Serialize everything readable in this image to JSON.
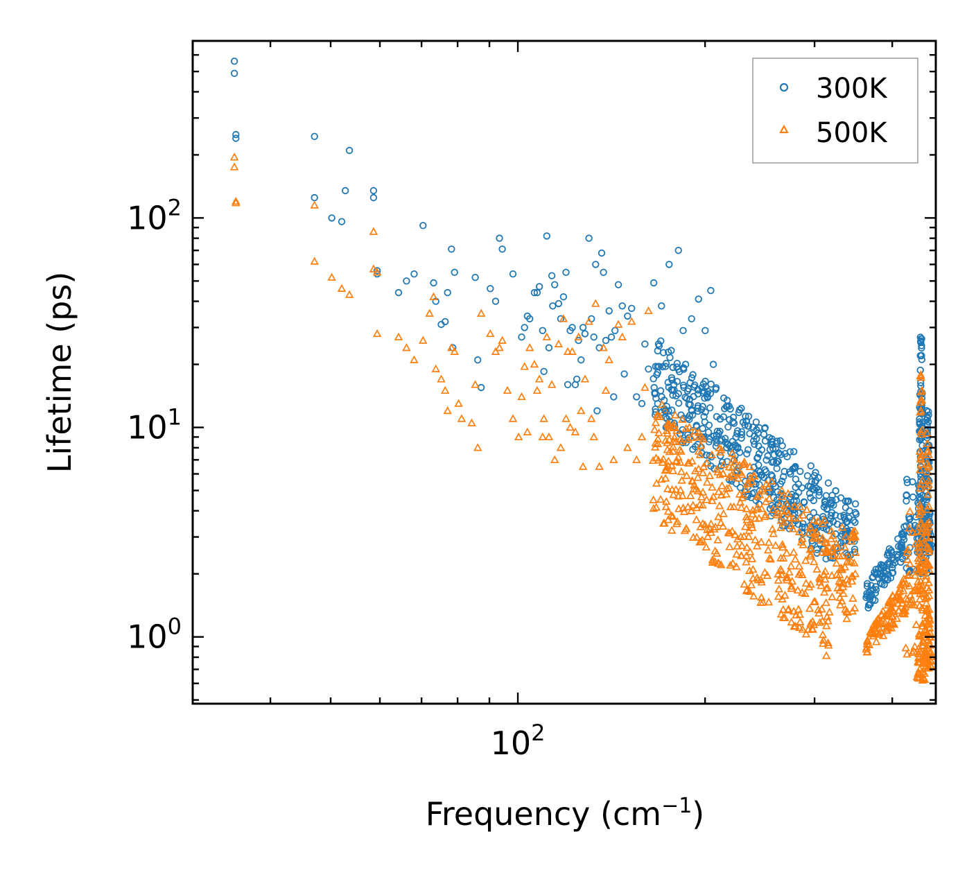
{
  "chart_data": {
    "type": "scatter",
    "xlabel": "Frequency (cm",
    "xlabel_sup": "−1",
    "xlabel_end": ")",
    "ylabel": "Lifetime (ps)",
    "xscale": "log",
    "yscale": "log",
    "xlim": [
      30,
      470
    ],
    "ylim": [
      0.48,
      700
    ],
    "x_tick_labels": [
      {
        "value": 100,
        "base": "10",
        "exp": "2"
      }
    ],
    "y_tick_labels": [
      {
        "value": 1,
        "base": "10",
        "exp": "0"
      },
      {
        "value": 10,
        "base": "10",
        "exp": "1"
      },
      {
        "value": 100,
        "base": "10",
        "exp": "2"
      }
    ],
    "legend_position": "top-right",
    "series": [
      {
        "name": "300K",
        "color": "#1f77b4",
        "marker": "circle",
        "x": [
          35.0,
          35.0,
          35.2,
          35.2,
          47.1,
          47.1,
          53.6,
          50.2,
          52.1,
          52.8,
          58.6,
          58.6,
          59.4,
          59.4,
          64.3,
          66.2,
          68.1,
          70.4,
          73.2,
          73.8,
          75.3,
          76.4,
          77.1,
          78.2,
          78.6,
          79.1,
          85.4,
          86.2,
          87.3,
          90.3,
          92.1,
          93.4,
          94.4,
          98.2,
          101.4,
          102.5,
          103.6,
          104.5,
          106.3,
          107.4,
          108.3,
          109.6,
          110.1,
          111.3,
          112.2,
          113.4,
          113.8,
          114.6,
          116.3,
          117.2,
          118.4,
          119.5,
          120.3,
          121.4,
          122.3,
          123.7,
          124.4,
          125.2,
          126.4,
          127.3,
          128.2,
          130.1,
          131.3,
          132.5,
          133.4,
          134.1,
          135.2,
          136.4,
          137.3,
          138.5,
          140.2,
          141.4,
          142.6,
          143.3,
          145.1,
          147.2,
          148.3,
          150.1,
          152.4,
          155.2,
          158.3,
          160.1,
          162.2,
          165.4,
          168.3,
          170.2,
          172.5,
          175.1,
          178.3,
          181.2,
          184.4,
          186.1,
          190.3,
          195.2,
          200.1,
          204.3,
          206.2
        ],
        "y": [
          560,
          490,
          250,
          240,
          245,
          125,
          210,
          100,
          96,
          135,
          135,
          125,
          56,
          54,
          44,
          50,
          54,
          92,
          49,
          40,
          31,
          32,
          44,
          71,
          24,
          55,
          52,
          21,
          15.5,
          46,
          40,
          80,
          71,
          54,
          27,
          30,
          34,
          33,
          44,
          44,
          47,
          29,
          18.5,
          82,
          24,
          53,
          38,
          48,
          39,
          33,
          42,
          55,
          16,
          29,
          30,
          16,
          17,
          26,
          21,
          30,
          28,
          80,
          33,
          27,
          60,
          12,
          24,
          68,
          55,
          26,
          36,
          27,
          14,
          29,
          48,
          38,
          18,
          34,
          37,
          14,
          13,
          25,
          19,
          49,
          25,
          38,
          12,
          60,
          16,
          70,
          29,
          20,
          33,
          41,
          29,
          45,
          20
        ]
      },
      {
        "name": "500K",
        "color": "#ff7f0e",
        "marker": "triangle",
        "x": [
          35.0,
          35.0,
          35.2,
          35.2,
          47.1,
          47.1,
          50.2,
          52.1,
          53.6,
          58.6,
          58.6,
          59.4,
          59.4,
          64.3,
          66.2,
          68.1,
          70.4,
          72.1,
          73.2,
          73.8,
          75.3,
          76.4,
          77.1,
          78.2,
          79.1,
          80.3,
          81.2,
          84.3,
          85.4,
          86.2,
          87.3,
          90.3,
          92.1,
          93.4,
          94.4,
          96.2,
          98.2,
          100.3,
          101.4,
          102.5,
          103.6,
          104.5,
          106.3,
          107.4,
          108.3,
          109.6,
          110.1,
          111.3,
          112.2,
          113.4,
          114.6,
          116.3,
          117.2,
          118.4,
          119.5,
          120.3,
          121.4,
          122.3,
          123.7,
          125.2,
          126.4,
          127.3,
          128.2,
          130.1,
          131.3,
          132.5,
          133.4,
          135.2,
          137.3,
          138.5,
          140.2,
          142.6,
          145.1,
          147.2,
          150.1,
          152.4,
          155.2,
          158.3,
          160.1,
          162.2
        ],
        "y": [
          195,
          175,
          120,
          118,
          62,
          115,
          52,
          46,
          43,
          86,
          57,
          55,
          28,
          27,
          24,
          21,
          26,
          35,
          42,
          19,
          17,
          15,
          12,
          24,
          23,
          13,
          11,
          10.5,
          16,
          8,
          35,
          28,
          23,
          24,
          26,
          15,
          11,
          9,
          14,
          19.5,
          9.5,
          24,
          20,
          15,
          17,
          9,
          11,
          27,
          9,
          16,
          7,
          25,
          8,
          33,
          11,
          23,
          10,
          23,
          9.5,
          27,
          12,
          6.5,
          17,
          32,
          11,
          9,
          39,
          6.5,
          24,
          15,
          21,
          7,
          31,
          27,
          8,
          32,
          7,
          9,
          15.5,
          36
        ]
      }
    ],
    "dense_bands": [
      {
        "series": "300K",
        "x_from": 165,
        "x_to": 318,
        "y_lo_from": 11,
        "y_lo_to": 2.2,
        "y_hi_from": 28,
        "y_hi_to": 5.5
      },
      {
        "series": "500K",
        "x_from": 165,
        "x_to": 318,
        "y_lo_from": 3.8,
        "y_lo_to": 0.78,
        "y_hi_from": 14,
        "y_hi_to": 3.5
      },
      {
        "series": "300K",
        "x_from": 318,
        "x_to": 350,
        "y_lo_from": 2.3,
        "y_lo_to": 2.4,
        "y_hi_from": 5.3,
        "y_hi_to": 4.4
      },
      {
        "series": "500K",
        "x_from": 318,
        "x_to": 350,
        "y_lo_from": 1.4,
        "y_lo_to": 1.1,
        "y_hi_from": 3.5,
        "y_hi_to": 3.3
      },
      {
        "series": "300K",
        "x_from": 363,
        "x_to": 420,
        "y_lo_from": 1.3,
        "y_lo_to": 2.4,
        "y_hi_from": 1.8,
        "y_hi_to": 3.5
      },
      {
        "series": "500K",
        "x_from": 363,
        "x_to": 420,
        "y_lo_from": 0.78,
        "y_lo_to": 1.3,
        "y_hi_from": 1.0,
        "y_hi_to": 2.0
      },
      {
        "series": "300K",
        "x_from": 420,
        "x_to": 460,
        "y_lo_from": 2.0,
        "y_lo_to": 2.0,
        "y_hi_from": 6.0,
        "y_hi_to": 6.0
      },
      {
        "series": "500K",
        "x_from": 420,
        "x_to": 460,
        "y_lo_from": 0.75,
        "y_lo_to": 0.75,
        "y_hi_from": 4.0,
        "y_hi_to": 4.0
      }
    ],
    "peaks": [
      {
        "series": "300K",
        "x": 445,
        "y_lo": 2.5,
        "y_hi": 27
      },
      {
        "series": "500K",
        "x": 445,
        "y_lo": 0.62,
        "y_hi": 20
      },
      {
        "series": "300K",
        "x": 456,
        "y_lo": 2.5,
        "y_hi": 12.5
      },
      {
        "series": "500K",
        "x": 456,
        "y_lo": 0.7,
        "y_hi": 9.5
      }
    ]
  }
}
